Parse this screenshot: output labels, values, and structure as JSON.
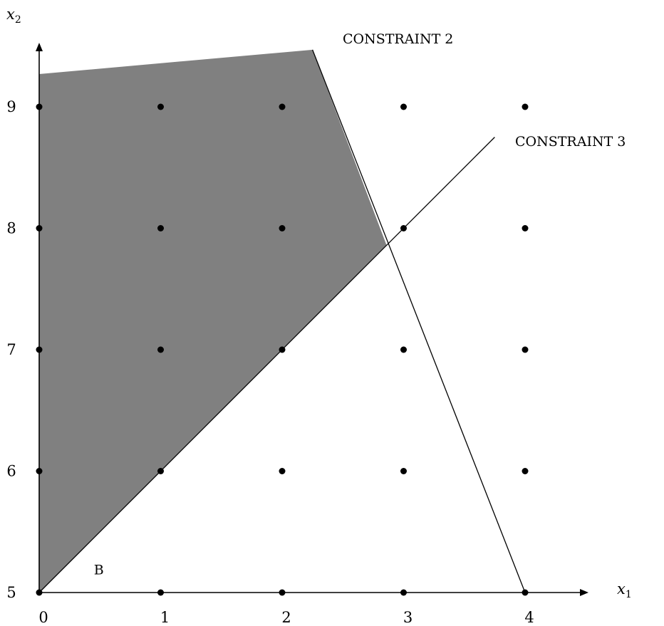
{
  "chart_data": {
    "type": "scatter",
    "x_ticks": [
      "0",
      "1",
      "2",
      "3",
      "4"
    ],
    "y_ticks": [
      "5",
      "6",
      "7",
      "8",
      "9"
    ],
    "x_axis_label": "x",
    "x_axis_label_sub": "1",
    "y_axis_label": "x",
    "y_axis_label_sub": "2",
    "xlim": [
      0,
      4
    ],
    "ylim": [
      5,
      9
    ],
    "lattice_points": {
      "x": [
        0,
        1,
        2,
        3,
        4
      ],
      "y": [
        5,
        6,
        7,
        8,
        9
      ]
    },
    "feasible_region": {
      "fill": "#808080",
      "vertices": [
        [
          0,
          5
        ],
        [
          0,
          9.27
        ],
        [
          2.25,
          9.47
        ],
        [
          2.86,
          7.86
        ]
      ]
    },
    "constraints": [
      {
        "label": "CONSTRAINT 2",
        "from": [
          2.25,
          9.47
        ],
        "to": [
          4,
          5
        ]
      },
      {
        "label": "CONSTRAINT 3",
        "from": [
          0,
          5
        ],
        "to": [
          3.75,
          8.75
        ]
      }
    ],
    "point_label": {
      "text": "B",
      "at": [
        0.45,
        5.15
      ]
    }
  }
}
